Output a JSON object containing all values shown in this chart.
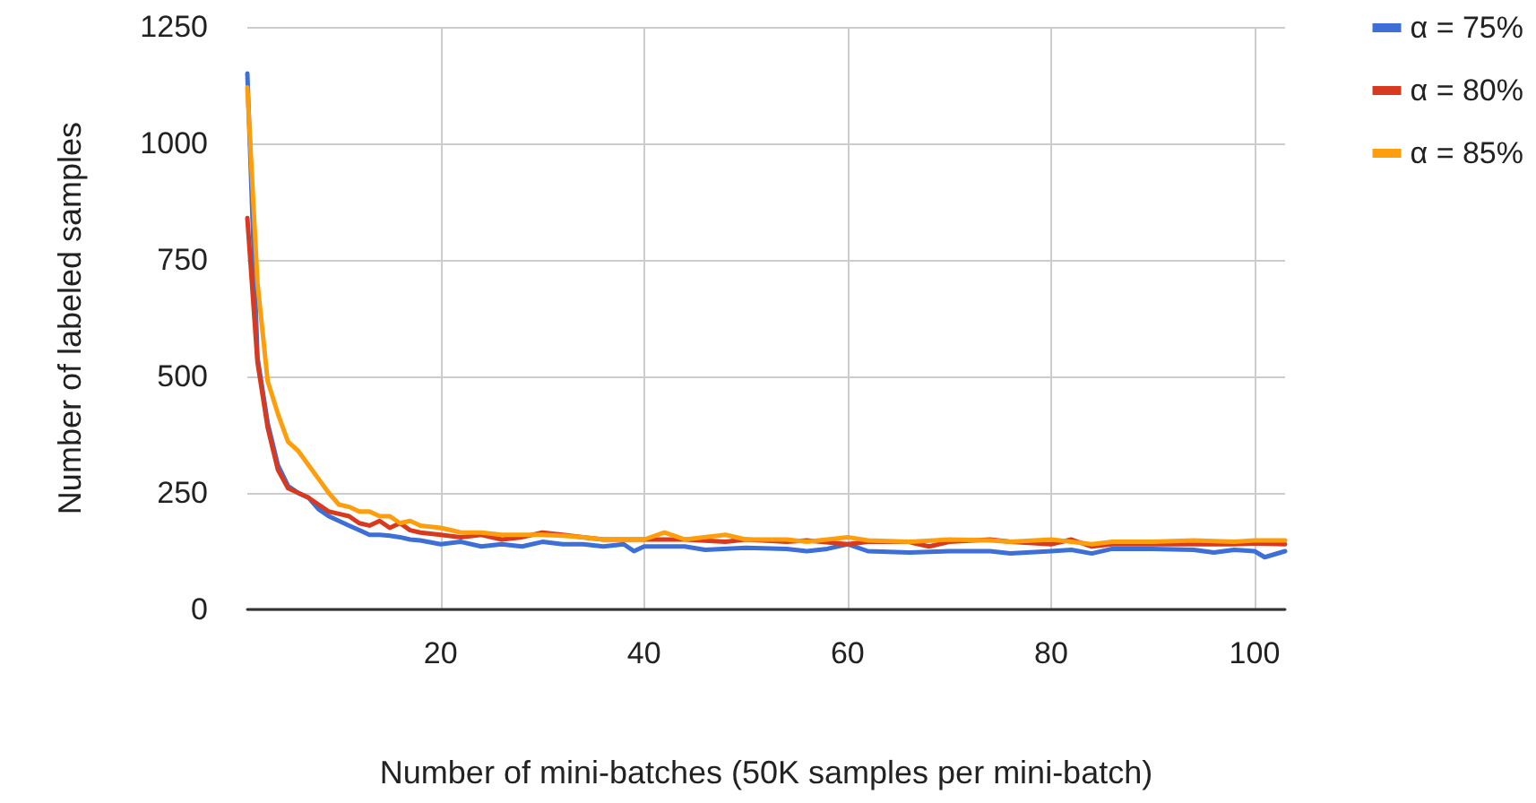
{
  "chart_data": {
    "type": "line",
    "xlabel": "Number of mini-batches (50K samples per mini-batch)",
    "ylabel": "Number of labeled samples",
    "xlim": [
      1,
      103
    ],
    "xticks": [
      20,
      40,
      60,
      80,
      100
    ],
    "ylim": [
      0,
      1250
    ],
    "yticks": [
      0,
      250,
      500,
      750,
      1000,
      1250
    ],
    "grid": true,
    "legend": "top right",
    "marker": "none",
    "line_style": "solid",
    "series": [
      {
        "name": "α = 75%",
        "color": "#3d6fd6",
        "x": [
          1,
          2,
          3,
          4,
          5,
          6,
          7,
          8,
          9,
          10,
          11,
          12,
          13,
          14,
          15,
          16,
          17,
          18,
          20,
          22,
          24,
          26,
          28,
          30,
          32,
          34,
          36,
          38,
          39,
          40,
          44,
          46,
          50,
          54,
          56,
          58,
          60,
          62,
          66,
          70,
          74,
          76,
          80,
          82,
          84,
          86,
          90,
          94,
          96,
          98,
          100,
          101,
          103
        ],
        "values": [
          1150,
          540,
          400,
          310,
          265,
          250,
          240,
          215,
          200,
          190,
          180,
          170,
          160,
          160,
          158,
          155,
          150,
          148,
          140,
          145,
          135,
          140,
          135,
          145,
          140,
          140,
          135,
          140,
          125,
          135,
          135,
          128,
          132,
          130,
          125,
          130,
          140,
          125,
          122,
          125,
          125,
          120,
          125,
          128,
          120,
          130,
          130,
          128,
          122,
          128,
          125,
          112,
          125
        ]
      },
      {
        "name": "α = 80%",
        "color": "#d83a1f",
        "x": [
          1,
          2,
          3,
          4,
          5,
          6,
          7,
          8,
          9,
          10,
          11,
          12,
          13,
          14,
          15,
          16,
          17,
          18,
          20,
          22,
          24,
          26,
          28,
          30,
          32,
          34,
          36,
          40,
          44,
          48,
          50,
          54,
          56,
          60,
          62,
          66,
          68,
          70,
          74,
          76,
          80,
          82,
          84,
          86,
          90,
          94,
          98,
          100,
          103
        ],
        "values": [
          840,
          530,
          390,
          300,
          260,
          250,
          240,
          225,
          210,
          205,
          200,
          185,
          180,
          190,
          175,
          185,
          170,
          165,
          160,
          155,
          160,
          150,
          155,
          165,
          160,
          155,
          150,
          150,
          150,
          145,
          150,
          145,
          148,
          140,
          145,
          145,
          135,
          145,
          150,
          145,
          140,
          150,
          135,
          140,
          140,
          140,
          140,
          142,
          140
        ]
      },
      {
        "name": "α = 85%",
        "color": "#ff9e0d",
        "x": [
          1,
          2,
          3,
          4,
          5,
          6,
          7,
          8,
          9,
          10,
          11,
          12,
          13,
          14,
          15,
          16,
          17,
          18,
          20,
          22,
          24,
          26,
          28,
          30,
          32,
          34,
          36,
          40,
          42,
          44,
          48,
          50,
          54,
          56,
          60,
          62,
          66,
          70,
          74,
          76,
          80,
          82,
          84,
          86,
          90,
          94,
          98,
          100,
          103
        ],
        "values": [
          1120,
          700,
          490,
          420,
          360,
          340,
          310,
          280,
          250,
          225,
          220,
          210,
          210,
          200,
          200,
          185,
          190,
          180,
          175,
          165,
          165,
          160,
          160,
          160,
          158,
          155,
          150,
          150,
          165,
          150,
          160,
          150,
          150,
          145,
          155,
          148,
          145,
          150,
          148,
          145,
          150,
          145,
          140,
          145,
          145,
          148,
          145,
          148,
          148
        ]
      }
    ]
  }
}
